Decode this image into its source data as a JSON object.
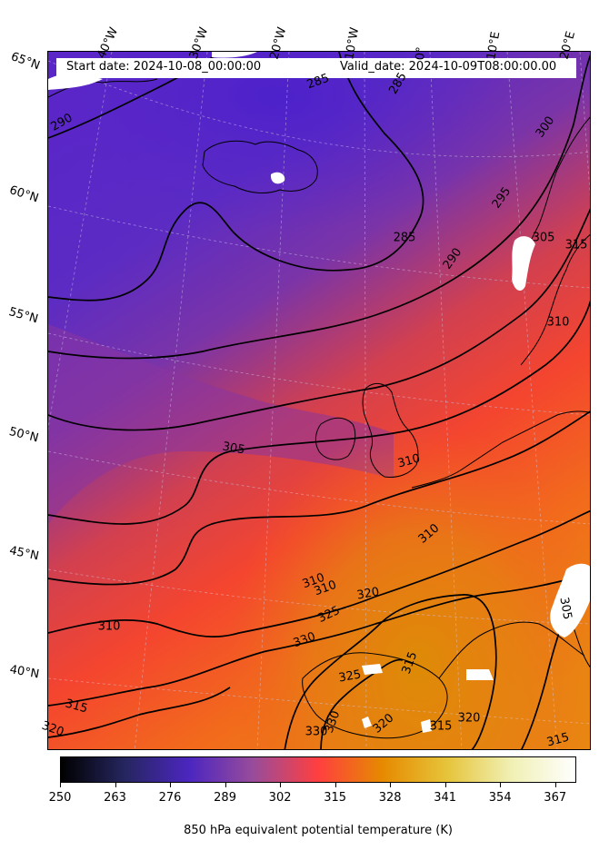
{
  "header": {
    "start_date": "Start date: 2024-10-08_00:00:00",
    "valid_date": "Valid_date: 2024-10-09T08:00:00.00"
  },
  "map": {
    "longitude_labels": [
      "40°W",
      "30°W",
      "20°W",
      "10°W",
      "0°",
      "10°E",
      "20°E"
    ],
    "latitude_labels": [
      "65°N",
      "60°N",
      "55°N",
      "50°N",
      "45°N",
      "40°N"
    ],
    "contour_labels": [
      "290",
      "285",
      "285",
      "285",
      "290",
      "295",
      "300",
      "305",
      "305",
      "310",
      "310",
      "310",
      "310",
      "310",
      "315",
      "315",
      "315",
      "315",
      "320",
      "320",
      "320",
      "320",
      "325",
      "325",
      "330",
      "330",
      "330",
      "310",
      "305",
      "315"
    ],
    "gridlines": true
  },
  "colorbar": {
    "ticks": [
      "250",
      "263",
      "276",
      "289",
      "302",
      "315",
      "328",
      "341",
      "354",
      "367"
    ],
    "label": "850 hPa equivalent potential temperature (K)",
    "colormap": "CMRmap",
    "range": [
      250,
      372
    ],
    "color_stops": [
      "#000000",
      "#262660",
      "#4c26c0",
      "#994c9a",
      "#ff3f3f",
      "#e68a00",
      "#e6c43a",
      "#f0f0b4",
      "#ffffff"
    ]
  }
}
